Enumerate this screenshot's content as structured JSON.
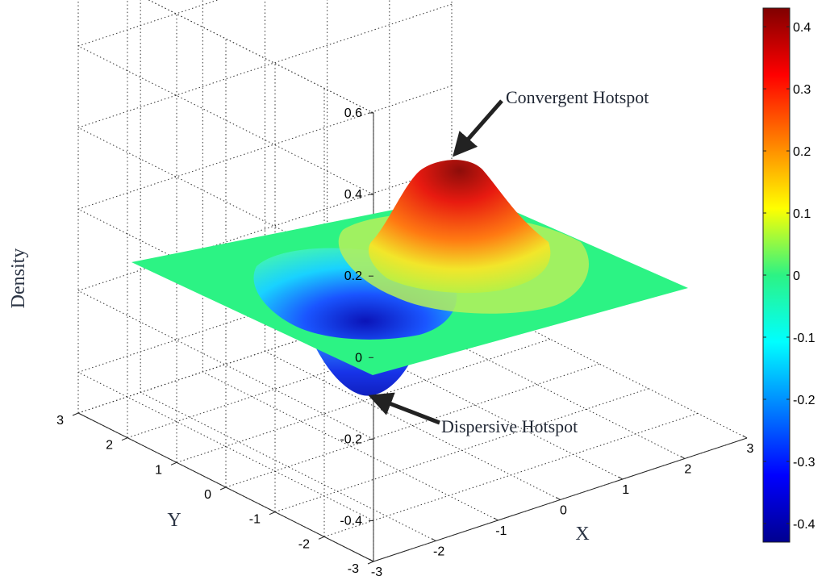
{
  "chart_data": {
    "type": "surface3d",
    "title": "",
    "xlabel": "X",
    "ylabel": "Y",
    "zlabel": "Density",
    "xlim": [
      -3,
      3
    ],
    "ylim": [
      -3,
      3
    ],
    "zlim": [
      -0.5,
      0.6
    ],
    "x_ticks": [
      "-3",
      "-2",
      "-1",
      "0",
      "1",
      "2",
      "3"
    ],
    "y_ticks": [
      "-3",
      "-2",
      "-1",
      "0",
      "1",
      "2",
      "3"
    ],
    "z_ticks": [
      "-0.4",
      "-0.2",
      "0",
      "0.2",
      "0.4",
      "0.6"
    ],
    "colorbar": {
      "colormap": "jet",
      "range": [
        -0.43,
        0.43
      ],
      "ticks": [
        "0.4",
        "0.3",
        "0.2",
        "0.1",
        "0",
        "-0.1",
        "-0.2",
        "-0.3",
        "-0.4"
      ]
    },
    "grid": true,
    "peaks": [
      {
        "x": 1,
        "y": 1,
        "density": 0.41,
        "annotation": "Convergent Hotspot"
      },
      {
        "x": -1,
        "y": -1,
        "density": -0.41,
        "annotation": "Dispersive Hotspot"
      }
    ],
    "colors": {
      "low": "#00008f",
      "zero": "#2cf384",
      "high": "#800000"
    }
  }
}
